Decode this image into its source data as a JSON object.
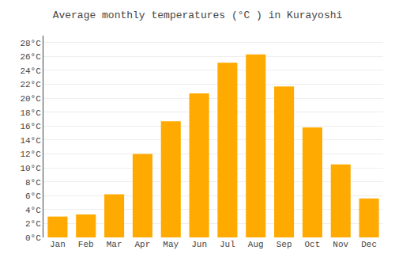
{
  "chart_data": {
    "type": "bar",
    "title": "Average monthly temperatures (°C ) in Kurayoshi",
    "categories": [
      "Jan",
      "Feb",
      "Mar",
      "Apr",
      "May",
      "Jun",
      "Jul",
      "Aug",
      "Sep",
      "Oct",
      "Nov",
      "Dec"
    ],
    "values": [
      3.0,
      3.3,
      6.2,
      12.0,
      16.7,
      20.7,
      25.1,
      26.3,
      21.7,
      15.8,
      10.5,
      5.6
    ],
    "color": "#FFAA00",
    "ylim": [
      0,
      29
    ],
    "yticks": [
      {
        "value": 0,
        "label": "0°C"
      },
      {
        "value": 2,
        "label": "2°C"
      },
      {
        "value": 4,
        "label": "4°C"
      },
      {
        "value": 6,
        "label": "6°C"
      },
      {
        "value": 8,
        "label": "8°C"
      },
      {
        "value": 10,
        "label": "10°C"
      },
      {
        "value": 12,
        "label": "12°C"
      },
      {
        "value": 14,
        "label": "14°C"
      },
      {
        "value": 16,
        "label": "16°C"
      },
      {
        "value": 18,
        "label": "18°C"
      },
      {
        "value": 20,
        "label": "20°C"
      },
      {
        "value": 22,
        "label": "22°C"
      },
      {
        "value": 24,
        "label": "24°C"
      },
      {
        "value": 26,
        "label": "26°C"
      },
      {
        "value": 28,
        "label": "28°C"
      }
    ],
    "grid": true
  }
}
